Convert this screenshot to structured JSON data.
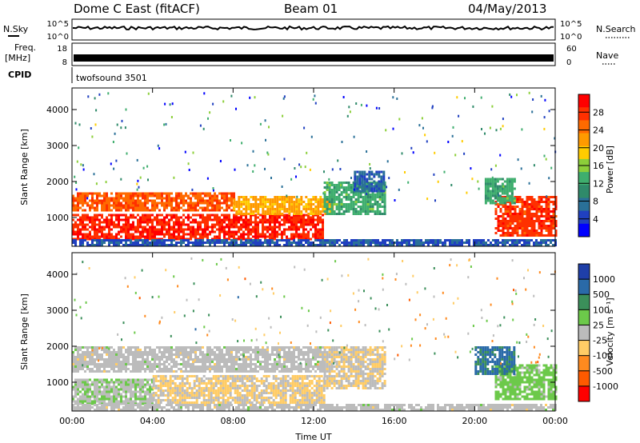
{
  "header": {
    "station": "Dome C East (fitACF)",
    "beam": "Beam 01",
    "date": "04/May/2013"
  },
  "aux_panels": {
    "nsky_label": "N.Sky",
    "nsky_left_ticks": [
      "10^5",
      "10^0"
    ],
    "nsearch_label": "N.Search",
    "nsearch_right_ticks": [
      "10^5",
      "10^0"
    ],
    "freq_label": "Freq.",
    "freq_unit": "[MHz]",
    "freq_ticks": [
      "18",
      "8"
    ],
    "nave_label": "Nave",
    "nave_ticks": [
      "60",
      "0"
    ],
    "cpid_label": "CPID",
    "cpid_value": "twofsound 3501"
  },
  "chart_data": [
    {
      "type": "heatmap",
      "title": "",
      "xlabel": "",
      "ylabel": "Slant Range [km]",
      "xlim": [
        0,
        24
      ],
      "ylim": [
        200,
        4600
      ],
      "x_ticks": [
        0,
        4,
        8,
        12,
        16,
        20,
        24
      ],
      "y_ticks": [
        1000,
        2000,
        3000,
        4000
      ],
      "y_tick_labels": [
        "1000",
        "2000",
        "3000",
        "4000"
      ],
      "colorbar": {
        "label": "Power [dB]",
        "tick_labels": [
          "28",
          "24",
          "20",
          "16",
          "12",
          "8",
          "4"
        ],
        "colors": [
          "#ff0000",
          "#ff3000",
          "#ff6a00",
          "#ff9a00",
          "#ffcc00",
          "#8ccf3a",
          "#3fae6e",
          "#2f8a6a",
          "#2a7098",
          "#2040c0",
          "#0000ff"
        ],
        "range": [
          0,
          30
        ]
      },
      "regions": [
        {
          "t0": 0.0,
          "t1": 12.5,
          "r0": 400,
          "r1": 1100,
          "value": 27
        },
        {
          "t0": 0.0,
          "t1": 8.0,
          "r0": 1200,
          "r1": 1700,
          "value": 24
        },
        {
          "t0": 8.0,
          "t1": 13.0,
          "r0": 1100,
          "r1": 1600,
          "value": 20
        },
        {
          "t0": 12.5,
          "t1": 15.5,
          "r0": 1100,
          "r1": 2000,
          "value": 12
        },
        {
          "t0": 14.0,
          "t1": 15.5,
          "r0": 1700,
          "r1": 2300,
          "value": 6
        },
        {
          "t0": 21.0,
          "t1": 24.0,
          "r0": 500,
          "r1": 1600,
          "value": 26
        },
        {
          "t0": 20.5,
          "t1": 22.0,
          "r0": 1400,
          "r1": 2100,
          "value": 12
        },
        {
          "t0": 0.0,
          "t1": 24.0,
          "r0": 250,
          "r1": 400,
          "value": 5
        }
      ]
    },
    {
      "type": "heatmap",
      "title": "",
      "xlabel": "Time UT",
      "ylabel": "Slant Range [km]",
      "xlim": [
        0,
        24
      ],
      "ylim": [
        200,
        4600
      ],
      "x_ticks": [
        0,
        4,
        8,
        12,
        16,
        20,
        24
      ],
      "x_tick_labels": [
        "00:00",
        "04:00",
        "08:00",
        "12:00",
        "16:00",
        "20:00",
        "00:00"
      ],
      "y_ticks": [
        1000,
        2000,
        3000,
        4000
      ],
      "y_tick_labels": [
        "1000",
        "2000",
        "3000",
        "4000"
      ],
      "colorbar": {
        "label": "Velocity [m s⁻¹]",
        "tick_labels": [
          "1000",
          "500",
          "100",
          "25",
          "-25",
          "-100",
          "-500",
          "-1000"
        ],
        "colors": [
          "#1f3fa8",
          "#2a6aa8",
          "#3b8f5a",
          "#6cc94a",
          "#bcbcbc",
          "#ffcc66",
          "#ff8a1f",
          "#ff5a00",
          "#ff0000"
        ],
        "range": [
          -1000,
          1000
        ]
      },
      "regions": [
        {
          "t0": 0.0,
          "t1": 4.0,
          "r0": 400,
          "r1": 1100,
          "value": 80
        },
        {
          "t0": 4.0,
          "t1": 12.5,
          "r0": 450,
          "r1": 1200,
          "value": -120
        },
        {
          "t0": 12.5,
          "t1": 15.5,
          "r0": 800,
          "r1": 2000,
          "value": -90
        },
        {
          "t0": 0.0,
          "t1": 12.5,
          "r0": 1300,
          "r1": 2000,
          "value": 0
        },
        {
          "t0": 21.0,
          "t1": 24.0,
          "r0": 500,
          "r1": 1500,
          "value": 200
        },
        {
          "t0": 20.0,
          "t1": 22.0,
          "r0": 1200,
          "r1": 2000,
          "value": 600
        },
        {
          "t0": 0.0,
          "t1": 24.0,
          "r0": 250,
          "r1": 400,
          "value": 0
        }
      ]
    }
  ]
}
